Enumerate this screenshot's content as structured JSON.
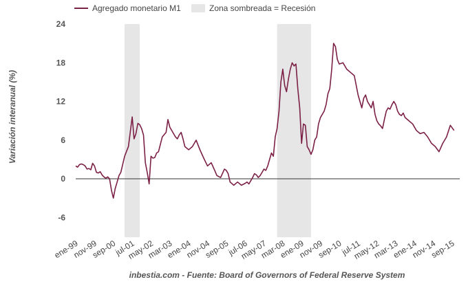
{
  "chart_data": {
    "type": "line",
    "title": "",
    "xlabel": "",
    "ylabel": "Variación interanual (%)",
    "ylim": [
      -9,
      24
    ],
    "yticks": [
      24,
      18,
      12,
      6,
      0,
      -6
    ],
    "xtick_labels": [
      "ene-99",
      "nov-99",
      "sep-00",
      "jul-01",
      "may-02",
      "mar-03",
      "ene-04",
      "nov-04",
      "sep-05",
      "jul-06",
      "may-07",
      "mar-08",
      "ene-09",
      "nov-09",
      "sep-10",
      "jul-11",
      "may-12",
      "mar-13",
      "ene-14",
      "nov-14",
      "sep-15"
    ],
    "x_start": "ene-99",
    "x_end": "abr-16",
    "recession_bands": [
      {
        "label": "mar-01 – nov-01",
        "start_month": 26,
        "end_month": 34
      },
      {
        "label": "dic-07 – jun-09",
        "start_month": 107,
        "end_month": 125
      }
    ],
    "series": [
      {
        "name": "Agregado monetario M1",
        "color": "#7b1f45",
        "month_index": [
          0,
          1,
          2,
          3,
          4,
          5,
          6,
          7,
          8,
          9,
          10,
          11,
          12,
          13,
          14,
          15,
          16,
          17,
          18,
          19,
          20,
          21,
          22,
          23,
          24,
          26,
          28,
          30,
          31,
          32,
          33,
          34,
          35,
          36,
          37,
          38,
          39,
          40,
          41,
          42,
          43,
          44,
          46,
          48,
          49,
          50,
          52,
          53,
          54,
          55,
          56,
          57,
          58,
          60,
          62,
          64,
          66,
          68,
          70,
          72,
          74,
          75,
          77,
          79,
          80,
          81,
          82,
          84,
          86,
          88,
          90,
          91,
          92,
          93,
          94,
          95,
          96,
          97,
          98,
          99,
          100,
          101,
          102,
          103,
          104,
          105,
          106,
          107,
          108,
          109,
          110,
          111,
          112,
          113,
          114,
          115,
          116,
          117,
          118,
          119,
          120,
          121,
          122,
          123,
          124,
          125,
          126,
          127,
          128,
          129,
          130,
          131,
          132,
          133,
          134,
          135,
          136,
          137,
          138,
          139,
          140,
          142,
          144,
          146,
          148,
          150,
          151,
          152,
          153,
          154,
          155,
          156,
          157,
          158,
          159,
          160,
          161,
          162,
          163,
          164,
          165,
          166,
          167,
          168,
          169,
          170,
          171,
          172,
          173,
          174,
          175,
          177,
          179,
          181,
          183,
          185,
          187,
          189,
          191,
          193,
          195,
          197,
          199,
          201,
          203,
          205,
          207
        ],
        "values": [
          2.0,
          1.8,
          2.2,
          2.3,
          2.2,
          2.0,
          1.5,
          1.6,
          1.4,
          2.4,
          2.0,
          1.0,
          0.9,
          1.1,
          0.6,
          0.3,
          0.1,
          0.3,
          0.0,
          -1.8,
          -3.0,
          -1.5,
          -0.5,
          0.5,
          1.0,
          3.5,
          5.0,
          9.6,
          6.2,
          7.0,
          8.6,
          8.4,
          7.8,
          6.8,
          2.5,
          1.0,
          -0.8,
          3.5,
          3.2,
          3.3,
          4.0,
          4.2,
          6.5,
          7.2,
          9.2,
          8.0,
          7.0,
          6.5,
          6.2,
          6.8,
          7.2,
          6.2,
          5.0,
          4.5,
          5.0,
          6.0,
          4.5,
          3.2,
          2.0,
          2.5,
          1.2,
          0.5,
          0.2,
          1.5,
          1.3,
          0.8,
          -0.5,
          -1.0,
          -0.5,
          -1.0,
          -0.7,
          -0.5,
          -0.8,
          -0.3,
          0.2,
          0.8,
          0.6,
          0.2,
          0.5,
          1.0,
          1.5,
          1.3,
          2.0,
          3.0,
          4.0,
          3.5,
          6.5,
          7.8,
          10.5,
          15.0,
          17.0,
          14.5,
          13.5,
          15.5,
          17.0,
          18.0,
          17.5,
          17.8,
          14.0,
          11.0,
          5.5,
          8.5,
          8.3,
          5.0,
          4.5,
          3.8,
          4.5,
          6.0,
          6.5,
          8.5,
          9.5,
          10.0,
          10.5,
          11.5,
          13.2,
          14.0,
          17.0,
          21.0,
          20.5,
          18.5,
          17.8,
          18.0,
          17.0,
          16.5,
          16.0,
          13.0,
          12.0,
          11.0,
          12.5,
          13.0,
          12.0,
          11.5,
          11.0,
          12.0,
          10.0,
          9.0,
          8.5,
          8.2,
          7.8,
          9.2,
          10.5,
          11.0,
          10.8,
          11.5,
          12.0,
          11.5,
          10.5,
          10.0,
          9.8,
          10.2,
          9.5,
          9.0,
          8.5,
          7.5,
          7.0,
          7.2,
          6.5,
          5.5,
          5.0,
          4.2,
          5.5,
          6.5,
          8.3,
          7.5
        ]
      }
    ],
    "legend": [
      {
        "key": "line",
        "label": "Agregado monetario M1"
      },
      {
        "key": "band",
        "label": "Zona sombreada = Recesión"
      }
    ],
    "footer": "inbestia.com - Fuente: Board of Governors of Federal Reserve System",
    "colors": {
      "line": "#7b1f45",
      "band": "#e6e6e6",
      "zero": "#333333"
    }
  }
}
